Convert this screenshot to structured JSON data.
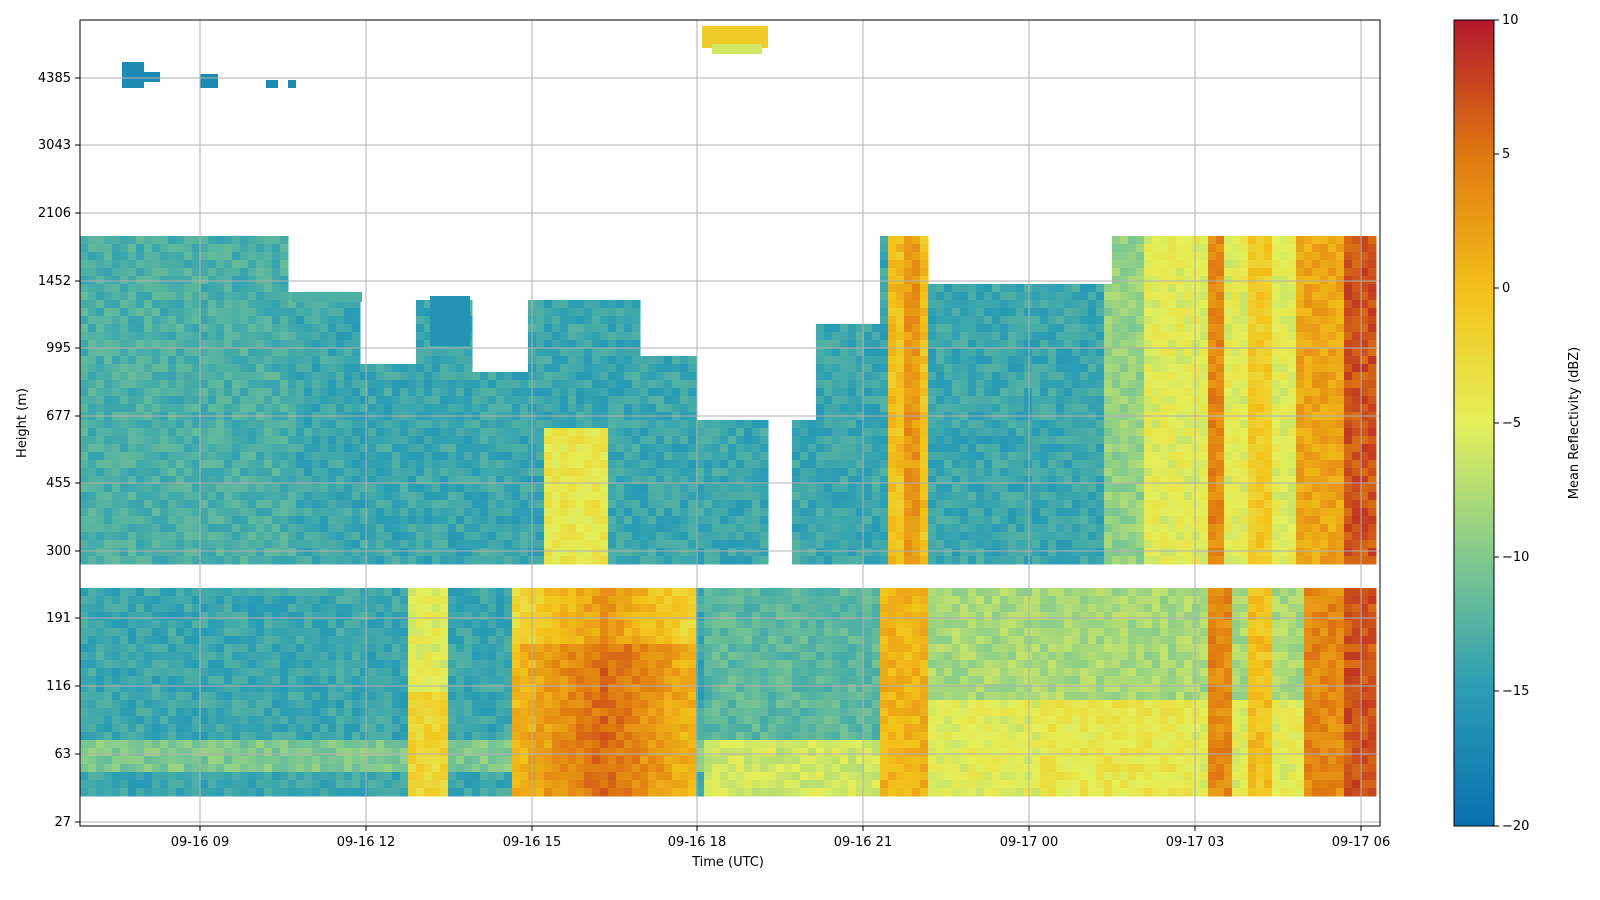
{
  "chart_data": {
    "type": "heatmap",
    "title": "",
    "xlabel": "Time (UTC)",
    "ylabel": "Height (m)",
    "x_ticks": [
      "09-16 09",
      "09-16 12",
      "09-16 15",
      "09-16 18",
      "09-16 21",
      "09-17 00",
      "09-17 03",
      "09-17 06"
    ],
    "y_ticks": [
      "27",
      "63",
      "116",
      "191",
      "300",
      "455",
      "677",
      "995",
      "1452",
      "2106",
      "3043",
      "4385"
    ],
    "colorbar": {
      "label": "Mean Reflectivity (dBZ)",
      "ticks": [
        "10",
        "5",
        "0",
        "−5",
        "−10",
        "−15",
        "−20"
      ],
      "range": [
        -20,
        10
      ],
      "colormap": [
        "#0571b0",
        "#2a9db5",
        "#7fc98f",
        "#e5f05a",
        "#f4c21a",
        "#e07a10",
        "#b2182b"
      ]
    },
    "grid": true,
    "regions": [
      {
        "name": "low-level-band-morning",
        "time": "09-16 06 to 09-16 13",
        "height_m": "40 to 250",
        "dbz": -14
      },
      {
        "name": "afternoon-enhancement",
        "time": "09-16 15 to 09-16 17",
        "height_m": "40 to 250",
        "dbz": 2
      },
      {
        "name": "overnight-columns",
        "time": "09-16 21 to 09-17 06",
        "height_m": "40 to 1800",
        "dbz": -5
      },
      {
        "name": "upper-cloud-cells",
        "time": "09-16 07",
        "height_m": "4385",
        "dbz": -17
      }
    ]
  }
}
